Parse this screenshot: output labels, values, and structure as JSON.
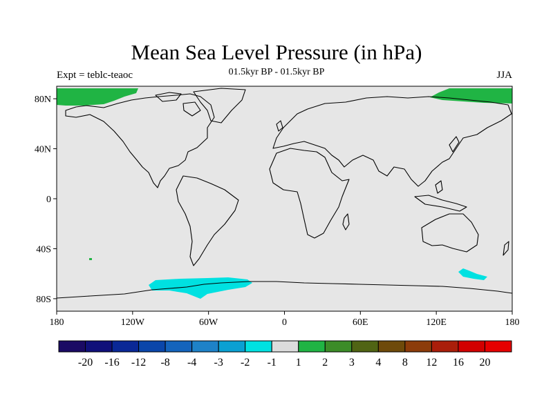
{
  "title": "Mean Sea Level Pressure (in hPa)",
  "subtitle": "01.5kyr BP - 01.5kyr BP",
  "left_label": "Expt = teblc-teaoc",
  "right_label": "JJA",
  "map": {
    "projection": "cylindrical equidistant",
    "lon_range": [
      -180,
      180
    ],
    "lat_range": [
      -90,
      90
    ],
    "background_color": "#e6e6e6",
    "x_ticks": [
      {
        "lon": -180,
        "label": "180"
      },
      {
        "lon": -120,
        "label": "120W"
      },
      {
        "lon": -60,
        "label": "60W"
      },
      {
        "lon": 0,
        "label": "0"
      },
      {
        "lon": 60,
        "label": "60E"
      },
      {
        "lon": 120,
        "label": "120E"
      },
      {
        "lon": 180,
        "label": "180"
      }
    ],
    "y_ticks": [
      {
        "lat": 80,
        "label": "80N"
      },
      {
        "lat": 40,
        "label": "40N"
      },
      {
        "lat": 0,
        "label": "0"
      },
      {
        "lat": -40,
        "label": "40S"
      },
      {
        "lat": -80,
        "label": "80S"
      }
    ],
    "anomaly_regions": [
      {
        "name": "arctic-west",
        "value_range": "1 to 2",
        "color": "#20b444"
      },
      {
        "name": "arctic-east",
        "value_range": "1 to 2",
        "color": "#20b444"
      },
      {
        "name": "south-pacific-speck",
        "value_range": "1 to 2",
        "color": "#20b444"
      },
      {
        "name": "southern-ocean-atlantic",
        "value_range": "-2 to -1",
        "color": "#00e1e1"
      },
      {
        "name": "southern-ocean-indian",
        "value_range": "-2 to -1",
        "color": "#00e1e1"
      }
    ]
  },
  "colorbar": {
    "labels": [
      "-20",
      "-16",
      "-12",
      "-8",
      "-4",
      "-3",
      "-2",
      "-1",
      "1",
      "2",
      "3",
      "4",
      "8",
      "12",
      "16",
      "20"
    ],
    "colors": [
      "#1a0a64",
      "#10107a",
      "#0a2896",
      "#0a46aa",
      "#1464bc",
      "#1e82c8",
      "#0aa0d2",
      "#00e1e1",
      "#dcdcdc",
      "#20b444",
      "#3c8c28",
      "#506414",
      "#6e4a0a",
      "#8c3c0a",
      "#aa1e0a",
      "#d20000",
      "#e60000"
    ]
  }
}
